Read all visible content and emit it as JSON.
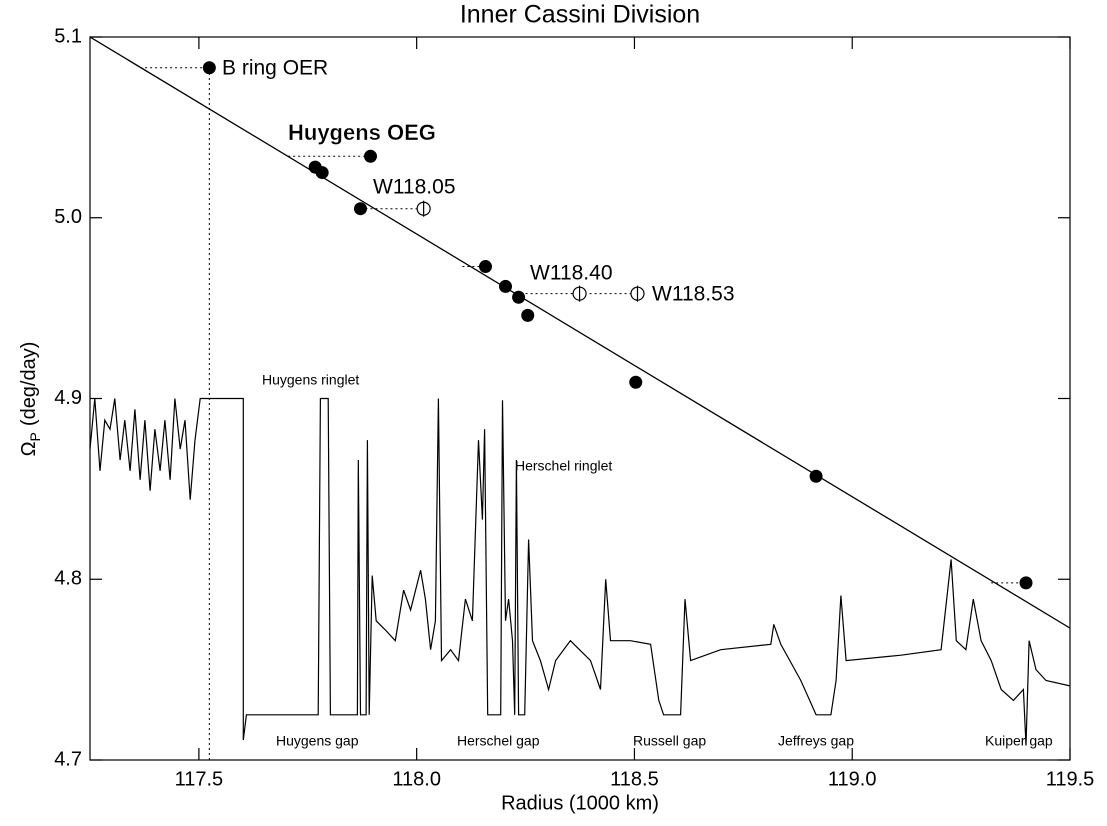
{
  "chart_data": {
    "type": "scatter",
    "title": "Inner Cassini Division",
    "xlabel": "Radius (1000 km)",
    "ylabel": {
      "symbol": "Ω",
      "subscript": "P",
      "unit": "(deg/day)"
    },
    "color": "#000000",
    "xlim": [
      117.25,
      119.5
    ],
    "ylim": [
      4.7,
      5.1
    ],
    "xticks": [
      117.5,
      {
        "value": 118,
        "label": "118.0"
      },
      118.5,
      {
        "value": 119,
        "label": "119.0"
      },
      119.5
    ],
    "yticks": [
      4.7,
      4.8,
      4.9,
      {
        "value": 5,
        "label": "5.0"
      },
      5.1
    ],
    "fit": {
      "x": [
        117.25,
        119.5
      ],
      "y": [
        5.1,
        4.773
      ]
    },
    "points": {
      "x": [
        117.524,
        117.894,
        117.767,
        117.783,
        117.871,
        118.158,
        118.204,
        118.234,
        118.255,
        118.503,
        118.917,
        119.399
      ],
      "y": [
        5.083,
        5.034,
        5.028,
        5.025,
        5.005,
        4.973,
        4.962,
        4.956,
        4.946,
        4.909,
        4.857,
        4.798
      ],
      "x_from": [
        117.365,
        117.705,
        null,
        null,
        null,
        118.105,
        null,
        null,
        null,
        null,
        null,
        119.319
      ]
    },
    "open_points": {
      "x": [
        118.016,
        118.374,
        118.507
      ],
      "y": [
        5.005,
        4.958,
        4.958
      ],
      "x_from": [
        117.871,
        118.227,
        118.374
      ]
    },
    "annotations": [
      "B ring OER",
      "Huygens OEG",
      "W118.05",
      "W118.40",
      "W118.53"
    ],
    "feature_labels": [
      "Huygens ringlet",
      "Herschel ringlet",
      "Huygens gap",
      "Herschel gap",
      "Russell gap",
      "Jeffreys gap",
      "Kuiper gap"
    ],
    "profile": {
      "x": [
        117.25,
        117.261,
        117.273,
        117.284,
        117.296,
        117.307,
        117.319,
        117.33,
        117.342,
        117.353,
        117.365,
        117.376,
        117.388,
        117.399,
        117.411,
        117.422,
        117.434,
        117.445,
        117.457,
        117.468,
        117.48,
        117.491,
        117.503,
        117.602,
        117.602,
        117.609,
        117.774,
        117.779,
        117.797,
        117.802,
        117.864,
        117.866,
        117.871,
        117.884,
        117.887,
        117.891,
        117.898,
        117.907,
        117.928,
        117.951,
        117.97,
        117.986,
        118.009,
        118.02,
        118.032,
        118.043,
        118.05,
        118.057,
        118.078,
        118.096,
        118.112,
        118.128,
        118.142,
        118.151,
        118.156,
        118.163,
        118.193,
        118.197,
        118.204,
        118.211,
        118.22,
        118.225,
        118.229,
        118.234,
        118.248,
        118.257,
        118.266,
        118.284,
        118.303,
        118.319,
        118.353,
        118.399,
        118.422,
        118.434,
        118.445,
        118.491,
        118.537,
        118.556,
        118.567,
        118.606,
        118.616,
        118.629,
        118.698,
        118.813,
        118.82,
        118.836,
        118.882,
        118.917,
        118.951,
        118.963,
        118.974,
        118.986,
        119.112,
        119.204,
        119.227,
        119.239,
        119.261,
        119.278,
        119.296,
        119.319,
        119.342,
        119.37,
        119.393,
        119.399,
        119.406,
        119.422,
        119.445,
        119.5
      ],
      "y": [
        4.872,
        4.9,
        4.86,
        4.888,
        4.883,
        4.9,
        4.866,
        4.888,
        4.86,
        4.894,
        4.855,
        4.888,
        4.849,
        4.883,
        4.86,
        4.888,
        4.855,
        4.9,
        4.872,
        4.888,
        4.844,
        4.877,
        4.9,
        4.9,
        4.711,
        4.725,
        4.725,
        4.9,
        4.9,
        4.725,
        4.725,
        4.866,
        4.725,
        4.725,
        4.877,
        4.725,
        4.802,
        4.777,
        4.772,
        4.766,
        4.794,
        4.783,
        4.805,
        4.789,
        4.761,
        4.777,
        4.9,
        4.755,
        4.761,
        4.755,
        4.789,
        4.777,
        4.877,
        4.833,
        4.883,
        4.725,
        4.725,
        4.899,
        4.777,
        4.789,
        4.766,
        4.725,
        4.866,
        4.725,
        4.725,
        4.822,
        4.766,
        4.755,
        4.739,
        4.755,
        4.766,
        4.755,
        4.739,
        4.8,
        4.766,
        4.766,
        4.764,
        4.733,
        4.725,
        4.725,
        4.789,
        4.755,
        4.761,
        4.764,
        4.775,
        4.764,
        4.744,
        4.725,
        4.725,
        4.744,
        4.791,
        4.755,
        4.758,
        4.761,
        4.811,
        4.766,
        4.761,
        4.789,
        4.766,
        4.755,
        4.739,
        4.733,
        4.739,
        4.708,
        4.766,
        4.75,
        4.744,
        4.741
      ]
    }
  }
}
